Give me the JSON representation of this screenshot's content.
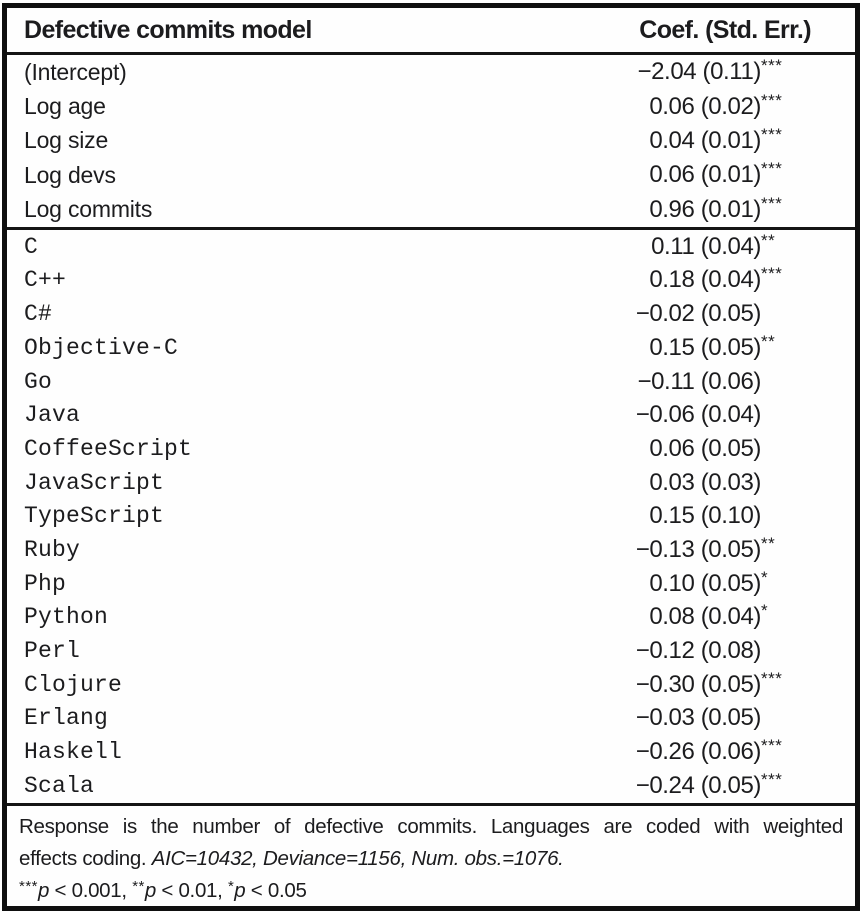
{
  "header": {
    "model_col": "Defective commits model",
    "coef_col": "Coef. (Std. Err.)"
  },
  "sections": [
    {
      "name": "model-controls",
      "mono": false,
      "rows": [
        {
          "label": "(Intercept)",
          "value": "−2.04 (0.11)",
          "stars": "***"
        },
        {
          "label": "Log age",
          "value": "0.06 (0.02)",
          "stars": "***"
        },
        {
          "label": "Log size",
          "value": "0.04 (0.01)",
          "stars": "***"
        },
        {
          "label": "Log devs",
          "value": "0.06 (0.01)",
          "stars": "***"
        },
        {
          "label": "Log commits",
          "value": "0.96 (0.01)",
          "stars": "***"
        }
      ]
    },
    {
      "name": "languages",
      "mono": true,
      "rows": [
        {
          "label": "C",
          "value": "0.11 (0.04)",
          "stars": "**"
        },
        {
          "label": "C++",
          "value": "0.18 (0.04)",
          "stars": "***"
        },
        {
          "label": "C#",
          "value": "−0.02 (0.05)",
          "stars": ""
        },
        {
          "label": "Objective-C",
          "value": "0.15 (0.05)",
          "stars": "**"
        },
        {
          "label": "Go",
          "value": "−0.11 (0.06)",
          "stars": ""
        },
        {
          "label": "Java",
          "value": "−0.06 (0.04)",
          "stars": ""
        },
        {
          "label": "CoffeeScript",
          "value": "0.06 (0.05)",
          "stars": ""
        },
        {
          "label": "JavaScript",
          "value": "0.03 (0.03)",
          "stars": ""
        },
        {
          "label": "TypeScript",
          "value": "0.15 (0.10)",
          "stars": ""
        },
        {
          "label": "Ruby",
          "value": "−0.13 (0.05)",
          "stars": "**"
        },
        {
          "label": "Php",
          "value": "0.10 (0.05)",
          "stars": "*"
        },
        {
          "label": "Python",
          "value": "0.08 (0.04)",
          "stars": "*"
        },
        {
          "label": "Perl",
          "value": "−0.12 (0.08)",
          "stars": ""
        },
        {
          "label": "Clojure",
          "value": "−0.30 (0.05)",
          "stars": "***"
        },
        {
          "label": "Erlang",
          "value": "−0.03 (0.05)",
          "stars": ""
        },
        {
          "label": "Haskell",
          "value": "−0.26 (0.06)",
          "stars": "***"
        },
        {
          "label": "Scala",
          "value": "−0.24 (0.05)",
          "stars": "***"
        }
      ]
    }
  ],
  "notes": {
    "line1": "Response is the number of defective commits. Languages are coded with weighted",
    "line2_normal": "effects coding. ",
    "line2_italic": "AIC=10432, Deviance=1156, Num. obs.=1076.",
    "p_symbol": "p",
    "significance": [
      {
        "stars": "***",
        "threshold": " < 0.001",
        "sep": ", "
      },
      {
        "stars": "**",
        "threshold": " < 0.01",
        "sep": ", "
      },
      {
        "stars": "*",
        "threshold": " < 0.05",
        "sep": ""
      }
    ]
  },
  "colors": {
    "text": "#1c1c1e",
    "border": "#0f0f0f",
    "background": "#fefefe"
  }
}
